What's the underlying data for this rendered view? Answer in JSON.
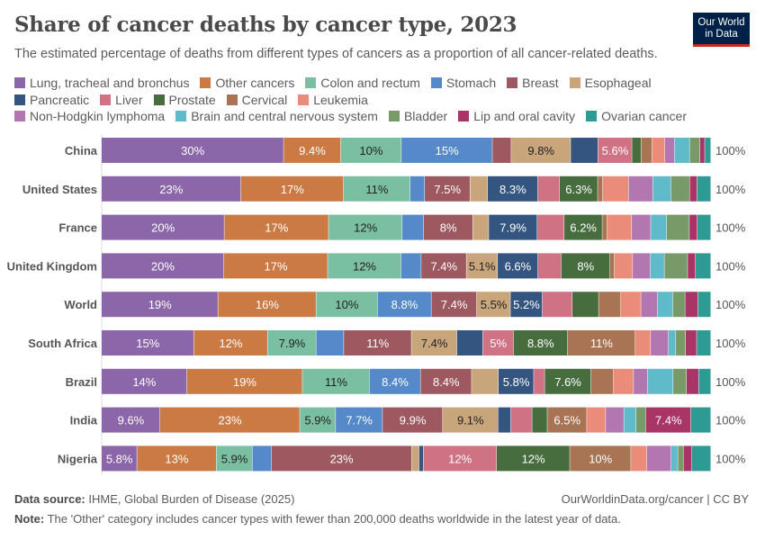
{
  "title": "Share of cancer deaths by cancer type, 2023",
  "subtitle": "The estimated percentage of deaths from different types of cancers as a proportion of all cancer-related deaths.",
  "logo": {
    "line1": "Our World",
    "line2": "in Data"
  },
  "footer": {
    "source_label": "Data source:",
    "source": "IHME, Global Burden of Disease (2025)",
    "credit": "OurWorldinData.org/cancer | CC BY",
    "note_label": "Note:",
    "note": "The 'Other' category includes cancer types with fewer than 200,000 deaths worldwide in the latest year of data."
  },
  "chart_data": {
    "type": "bar",
    "orientation": "horizontal",
    "stacked": "100%",
    "total_label": "100%",
    "legend_position": "top",
    "categories": [
      "China",
      "United States",
      "France",
      "United Kingdom",
      "World",
      "South Africa",
      "Brazil",
      "India",
      "Nigeria"
    ],
    "series": [
      {
        "name": "Lung, tracheal and bronchus",
        "color": "#8b66a8",
        "values": [
          30,
          23,
          20,
          20,
          19,
          15,
          14,
          9.6,
          5.8
        ]
      },
      {
        "name": "Other cancers",
        "color": "#cc7a44",
        "values": [
          9.4,
          17,
          17,
          17,
          16,
          12,
          19,
          23,
          13
        ]
      },
      {
        "name": "Colon and rectum",
        "color": "#7bbfa2",
        "values": [
          10,
          11,
          12,
          12,
          10,
          7.9,
          11,
          5.9,
          5.9
        ]
      },
      {
        "name": "Stomach",
        "color": "#5589c9",
        "values": [
          15,
          2.4,
          3.5,
          3.3,
          8.8,
          4.5,
          8.4,
          7.7,
          3.1
        ]
      },
      {
        "name": "Breast",
        "color": "#9e5860",
        "values": [
          3.1,
          7.5,
          8,
          7.4,
          7.4,
          11,
          8.4,
          9.9,
          23
        ]
      },
      {
        "name": "Esophageal",
        "color": "#c9a57b",
        "values": [
          9.8,
          2.9,
          2.6,
          5.1,
          5.5,
          7.4,
          4.4,
          9.1,
          1.2
        ]
      },
      {
        "name": "Pancreatic",
        "color": "#34557f",
        "values": [
          4.5,
          8.3,
          7.9,
          6.6,
          5.2,
          4.2,
          5.8,
          2.1,
          0.7
        ]
      },
      {
        "name": "Liver",
        "color": "#cf7283",
        "values": [
          5.6,
          3.6,
          4.4,
          3.8,
          4.9,
          5,
          1.8,
          3.5,
          12
        ]
      },
      {
        "name": "Prostate",
        "color": "#476d3f",
        "values": [
          1.5,
          6.3,
          6.2,
          8,
          4.3,
          8.8,
          7.6,
          2.5,
          12
        ]
      },
      {
        "name": "Cervical",
        "color": "#a87454",
        "values": [
          1.8,
          0.8,
          0.8,
          0.7,
          3.6,
          11,
          3.7,
          6.5,
          10
        ]
      },
      {
        "name": "Leukemia",
        "color": "#eb8b7a",
        "values": [
          2.1,
          4.3,
          4.0,
          3.0,
          3.3,
          2.5,
          3.3,
          3.1,
          2.6
        ]
      },
      {
        "name": "Non-Hodgkin lymphoma",
        "color": "#b277b0",
        "values": [
          1.6,
          4.0,
          3.1,
          2.9,
          2.7,
          2.9,
          2.3,
          3.0,
          4.0
        ]
      },
      {
        "name": "Brain and central nervous system",
        "color": "#5fbbca",
        "values": [
          2.5,
          3.0,
          2.6,
          2.3,
          2.5,
          1.2,
          4.2,
          2.0,
          1.1
        ]
      },
      {
        "name": "Bladder",
        "color": "#789a69",
        "values": [
          1.7,
          3.1,
          3.7,
          3.8,
          2.0,
          1.6,
          2.2,
          1.6,
          0.9
        ]
      },
      {
        "name": "Lip and oral cavity",
        "color": "#a93566",
        "values": [
          0.8,
          1.2,
          1.3,
          1.3,
          2.1,
          1.8,
          2.0,
          7.4,
          1.4
        ]
      },
      {
        "name": "Ovarian cancer",
        "color": "#2d9a93",
        "values": [
          1.0,
          2.3,
          2.2,
          2.5,
          2.1,
          2.3,
          2.0,
          3.3,
          3.1
        ]
      }
    ],
    "xlim": [
      0,
      100
    ],
    "unit": "%"
  }
}
